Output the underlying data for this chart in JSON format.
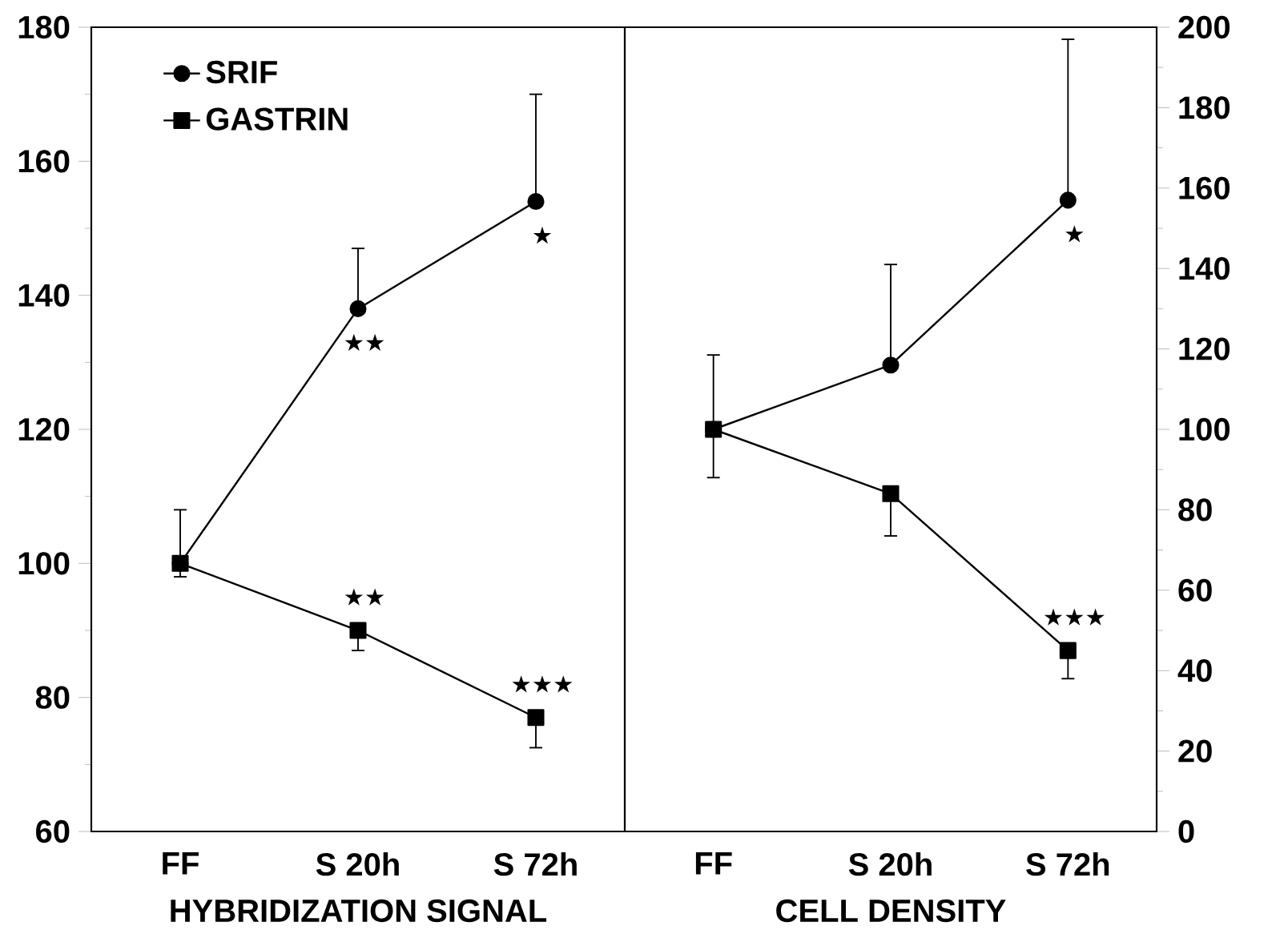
{
  "chart_data": [
    {
      "type": "line",
      "xlabel": "HYBRIDIZATION SIGNAL",
      "categories": [
        "FF",
        "S 20h",
        "S 72h"
      ],
      "ylim": [
        60,
        180
      ],
      "yticks": [
        60,
        80,
        100,
        120,
        140,
        160,
        180
      ],
      "legend": "top left",
      "series": [
        {
          "name": "SRIF",
          "color": "#000000",
          "marker": "circle",
          "values": [
            100,
            138,
            154
          ],
          "errors": [
            [
              100,
              108
            ],
            [
              138,
              147
            ],
            [
              154,
              170
            ]
          ],
          "value_labels": [
            null,
            "★★",
            "★"
          ]
        },
        {
          "name": "GASTRIN",
          "color": "#000000",
          "marker": "square",
          "values": [
            100,
            90,
            77
          ],
          "errors": [
            [
              98,
              100
            ],
            [
              87,
              90
            ],
            [
              72.5,
              77
            ]
          ],
          "value_labels": [
            null,
            "★★",
            "★★★"
          ]
        }
      ]
    },
    {
      "type": "line",
      "xlabel": "CELL DENSITY",
      "categories": [
        "FF",
        "S 20h",
        "S 72h"
      ],
      "ylim": [
        0,
        200
      ],
      "yticks": [
        0,
        20,
        40,
        60,
        80,
        100,
        120,
        140,
        160,
        180,
        200
      ],
      "series": [
        {
          "color": "#000000",
          "marker": "circle",
          "values": [
            100,
            116,
            157
          ],
          "errors": [
            [
              100,
              118.5
            ],
            [
              116,
              141
            ],
            [
              157,
              197
            ]
          ],
          "value_labels": [
            null,
            null,
            "★"
          ]
        },
        {
          "color": "#000000",
          "marker": "square",
          "values": [
            100,
            84,
            45
          ],
          "errors": [
            [
              88,
              100
            ],
            [
              73.5,
              84
            ],
            [
              38,
              45
            ]
          ],
          "value_labels": [
            null,
            null,
            "★★★"
          ]
        }
      ]
    }
  ]
}
